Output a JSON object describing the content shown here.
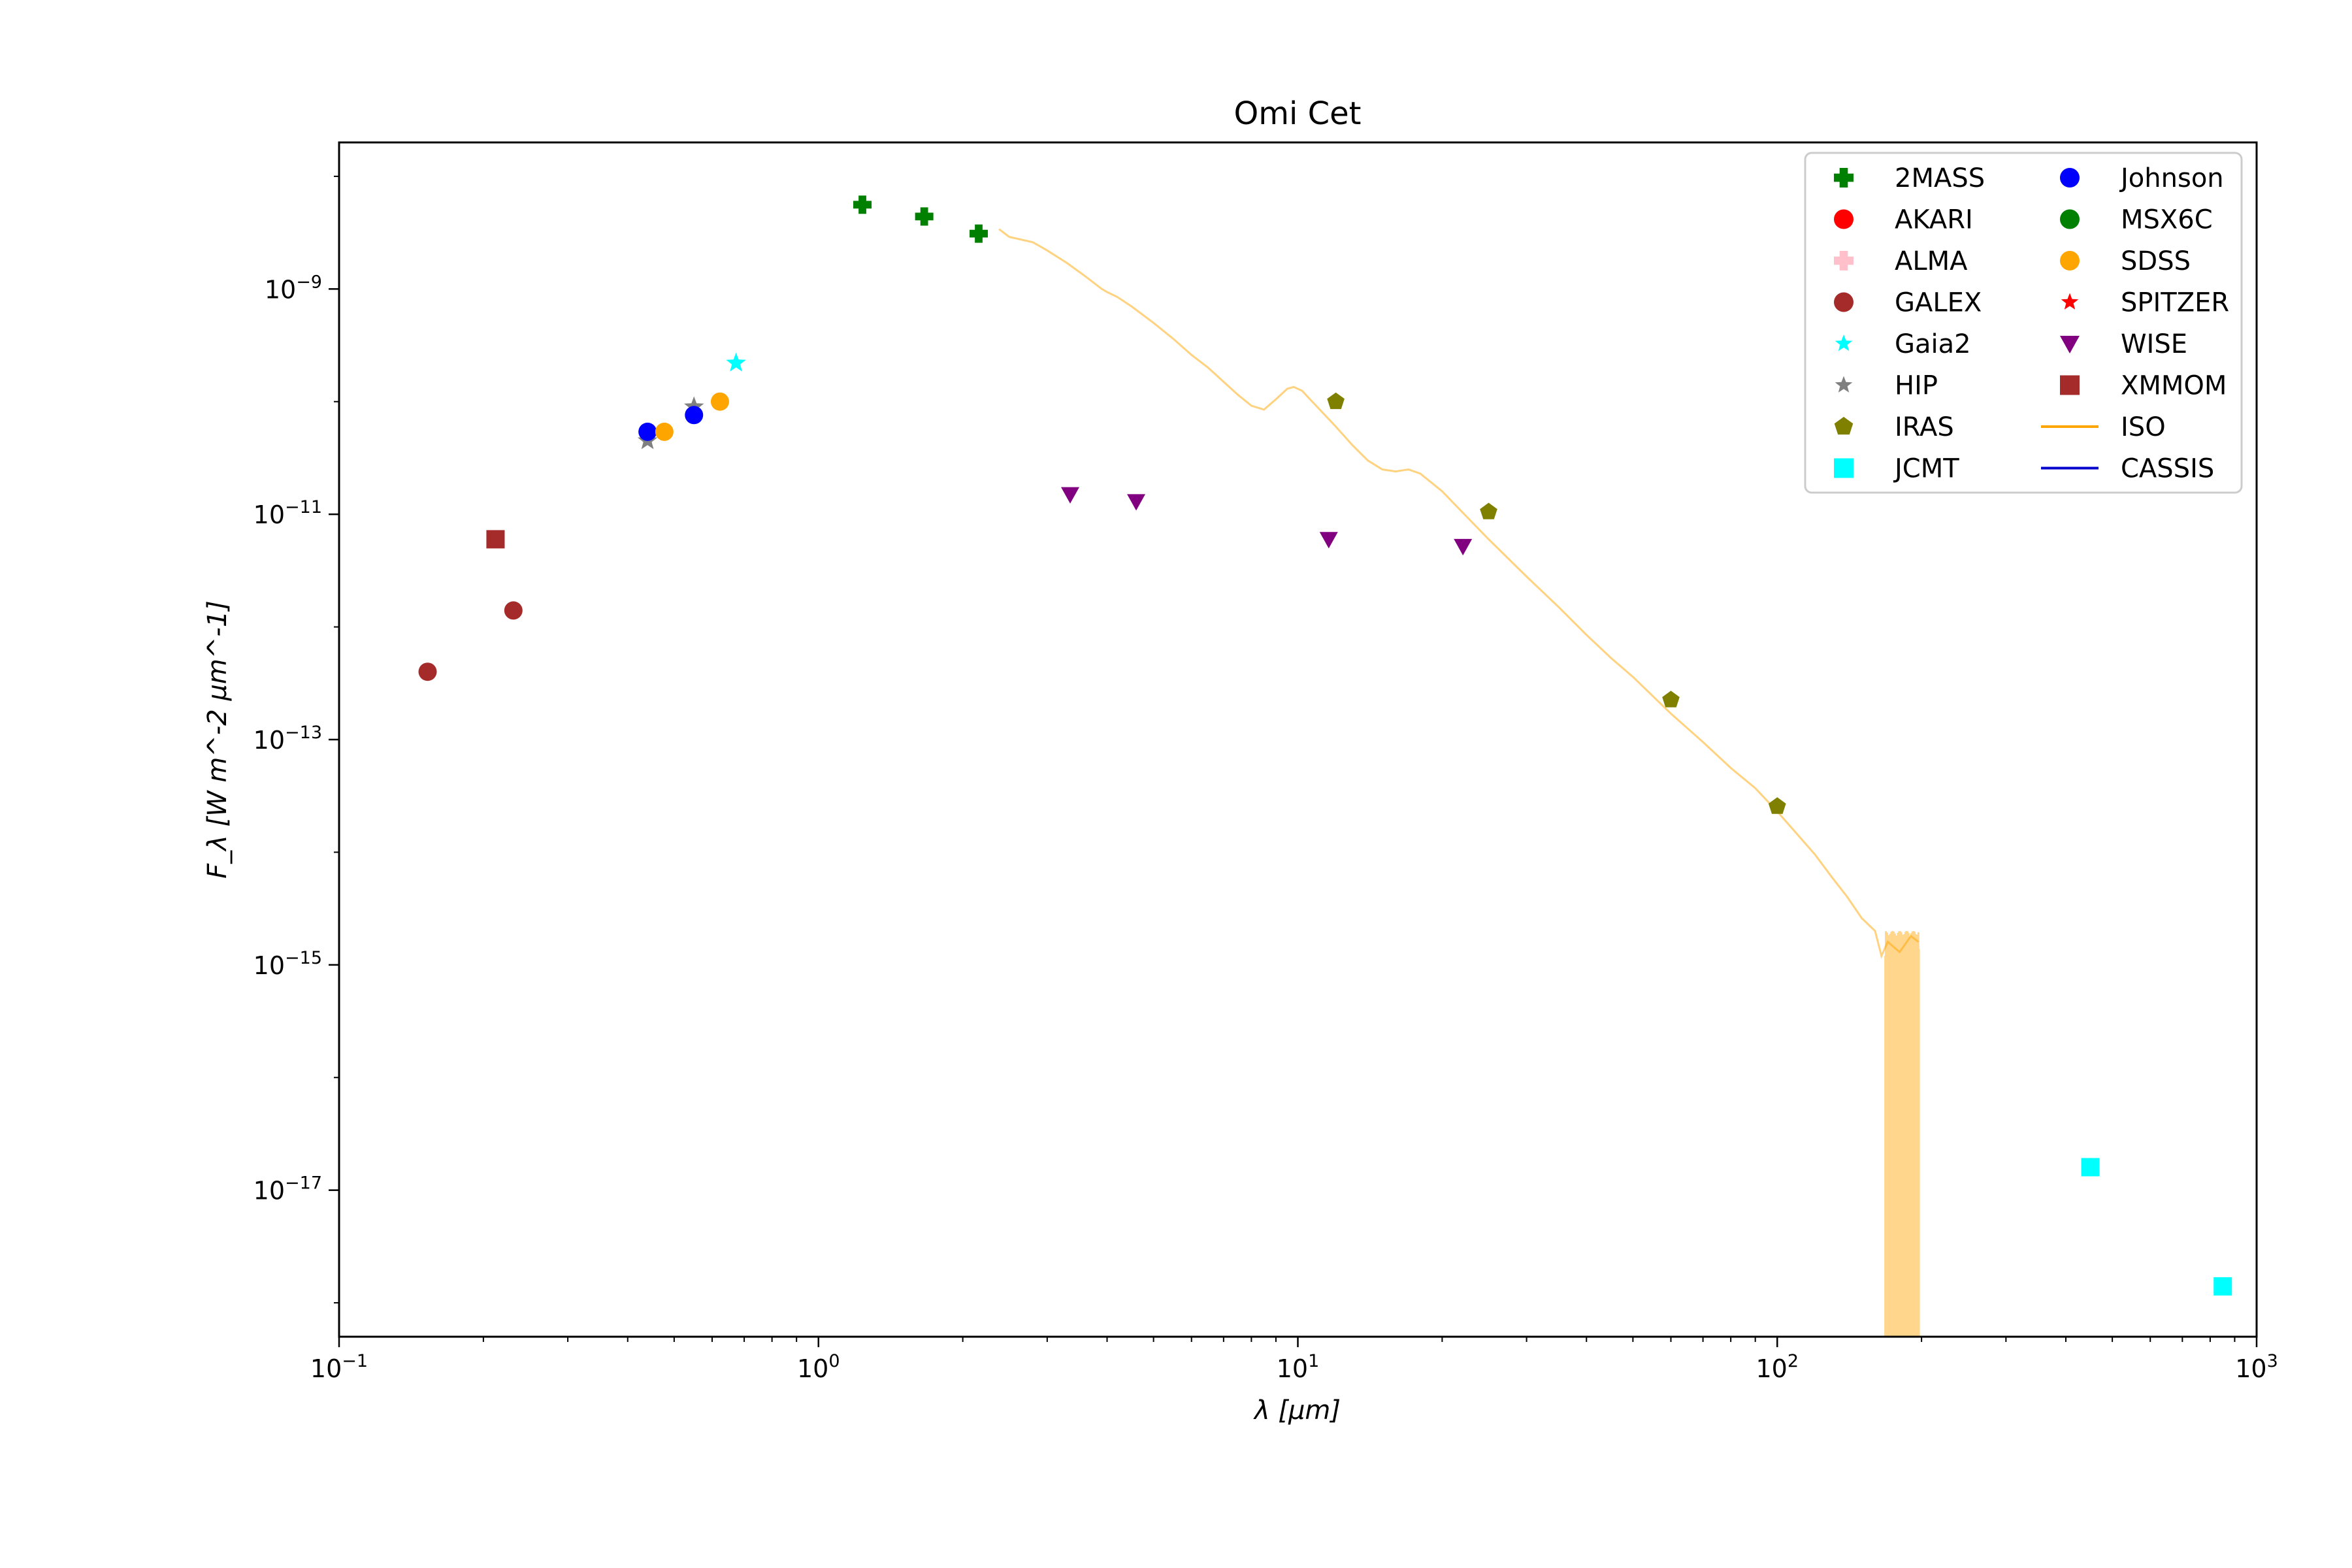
{
  "chart_data": {
    "type": "scatter",
    "title": "Omi Cet",
    "xlabel": "λ [μm]",
    "ylabel": "F_λ [W m^-2 μm^-1]",
    "x_scale": "log",
    "y_scale": "log",
    "xlim": [
      0.1,
      1000
    ],
    "ylim": [
      5e-19,
      2e-08
    ],
    "grid": false,
    "legend_position": "top-right",
    "legend_columns": 2,
    "x_ticks": [
      {
        "base": "10",
        "exp": "−1",
        "value": 0.1
      },
      {
        "base": "10",
        "exp": "0",
        "value": 1
      },
      {
        "base": "10",
        "exp": "1",
        "value": 10
      },
      {
        "base": "10",
        "exp": "2",
        "value": 100
      },
      {
        "base": "10",
        "exp": "3",
        "value": 1000
      }
    ],
    "y_ticks": [
      {
        "base": "10",
        "exp": "−9",
        "value": 1e-09
      },
      {
        "base": "10",
        "exp": "−11",
        "value": 1e-11
      },
      {
        "base": "10",
        "exp": "−13",
        "value": 1e-13
      },
      {
        "base": "10",
        "exp": "−15",
        "value": 1e-15
      },
      {
        "base": "10",
        "exp": "−17",
        "value": 1e-17
      }
    ],
    "series": [
      {
        "name": "2MASS",
        "color": "#008000",
        "marker": "plus",
        "x": [
          1.235,
          1.662,
          2.159
        ],
        "y": [
          5.6e-09,
          4.4e-09,
          3.1e-09
        ]
      },
      {
        "name": "AKARI",
        "color": "#ff0000",
        "marker": "circle",
        "x": [],
        "y": []
      },
      {
        "name": "ALMA",
        "color": "#ffc0cb",
        "marker": "plus",
        "x": [],
        "y": []
      },
      {
        "name": "GALEX",
        "color": "#a52a2a",
        "marker": "circle",
        "x": [
          0.153,
          0.231
        ],
        "y": [
          4e-13,
          1.4e-12
        ]
      },
      {
        "name": "Gaia2",
        "color": "#00ffff",
        "marker": "star",
        "x": [
          0.673
        ],
        "y": [
          2.2e-10
        ]
      },
      {
        "name": "HIP",
        "color": "#808080",
        "marker": "star",
        "x": [
          0.44,
          0.55
        ],
        "y": [
          4.5e-11,
          9e-11
        ]
      },
      {
        "name": "IRAS",
        "color": "#808000",
        "marker": "pentagon",
        "x": [
          12,
          25,
          60,
          100
        ],
        "y": [
          1e-10,
          1.05e-11,
          2.25e-13,
          2.55e-14
        ]
      },
      {
        "name": "JCMT",
        "color": "#00ffff",
        "marker": "square",
        "x": [
          450,
          850
        ],
        "y": [
          1.6e-17,
          1.4e-18
        ]
      },
      {
        "name": "Johnson",
        "color": "#0000ff",
        "marker": "circle",
        "x": [
          0.44,
          0.55
        ],
        "y": [
          5.4e-11,
          7.6e-11
        ]
      },
      {
        "name": "MSX6C",
        "color": "#008000",
        "marker": "circle",
        "x": [],
        "y": []
      },
      {
        "name": "SDSS",
        "color": "#ffa500",
        "marker": "circle",
        "x": [
          0.477,
          0.623
        ],
        "y": [
          5.4e-11,
          1e-10
        ]
      },
      {
        "name": "SPITZER",
        "color": "#ff0000",
        "marker": "star",
        "x": [],
        "y": []
      },
      {
        "name": "WISE",
        "color": "#800080",
        "marker": "triangle-down",
        "x": [
          3.35,
          4.6,
          11.6,
          22.1
        ],
        "y": [
          1.5e-11,
          1.3e-11,
          6e-12,
          5.2e-12
        ]
      },
      {
        "name": "XMMOM",
        "color": "#a52a2a",
        "marker": "square",
        "x": [
          0.212
        ],
        "y": [
          6e-12
        ]
      },
      {
        "name": "ISO",
        "color": "#ffa500",
        "marker": "line",
        "line_opacity": 0.5,
        "x": [
          2.38,
          2.5,
          2.8,
          3.0,
          3.3,
          3.6,
          3.9,
          4.0,
          4.2,
          4.5,
          5.0,
          5.5,
          6.0,
          6.5,
          7.0,
          7.5,
          8.0,
          8.5,
          9.0,
          9.5,
          9.8,
          10.2,
          10.6,
          11.2,
          12.0,
          13.0,
          14.0,
          15.0,
          16.0,
          17.0,
          18.0,
          20.0,
          22.0,
          25.0,
          30.0,
          35.0,
          40.0,
          45.0,
          50.0,
          60.0,
          70.0,
          80.0,
          90.0,
          100.0,
          110.0,
          120.0,
          130.0,
          140.0,
          150.0,
          160.0,
          165.0,
          170.0,
          180.0,
          190.0,
          197.0
        ],
        "y": [
          3.4e-09,
          2.9e-09,
          2.6e-09,
          2.2e-09,
          1.7e-09,
          1.3e-09,
          1e-09,
          9.4e-10,
          8.5e-10,
          7e-10,
          5e-10,
          3.6e-10,
          2.6e-10,
          2e-10,
          1.5e-10,
          1.15e-10,
          9.2e-11,
          8.5e-11,
          1.05e-10,
          1.3e-10,
          1.35e-10,
          1.25e-10,
          1.05e-10,
          8.2e-11,
          6e-11,
          4.1e-11,
          3e-11,
          2.5e-11,
          2.4e-11,
          2.5e-11,
          2.3e-11,
          1.6e-11,
          1.05e-11,
          6e-12,
          2.8e-12,
          1.5e-12,
          8.5e-13,
          5.3e-13,
          3.6e-13,
          1.7e-13,
          9.5e-14,
          5.6e-14,
          3.7e-14,
          2.3e-14,
          1.45e-14,
          9.5e-15,
          6e-15,
          4e-15,
          2.6e-15,
          2e-15,
          1.2e-15,
          1.6e-15,
          1.3e-15,
          1.8e-15,
          1.6e-15
        ]
      },
      {
        "name": "CASSIS",
        "color": "#0000cd",
        "marker": "line",
        "x": [],
        "y": []
      }
    ]
  }
}
